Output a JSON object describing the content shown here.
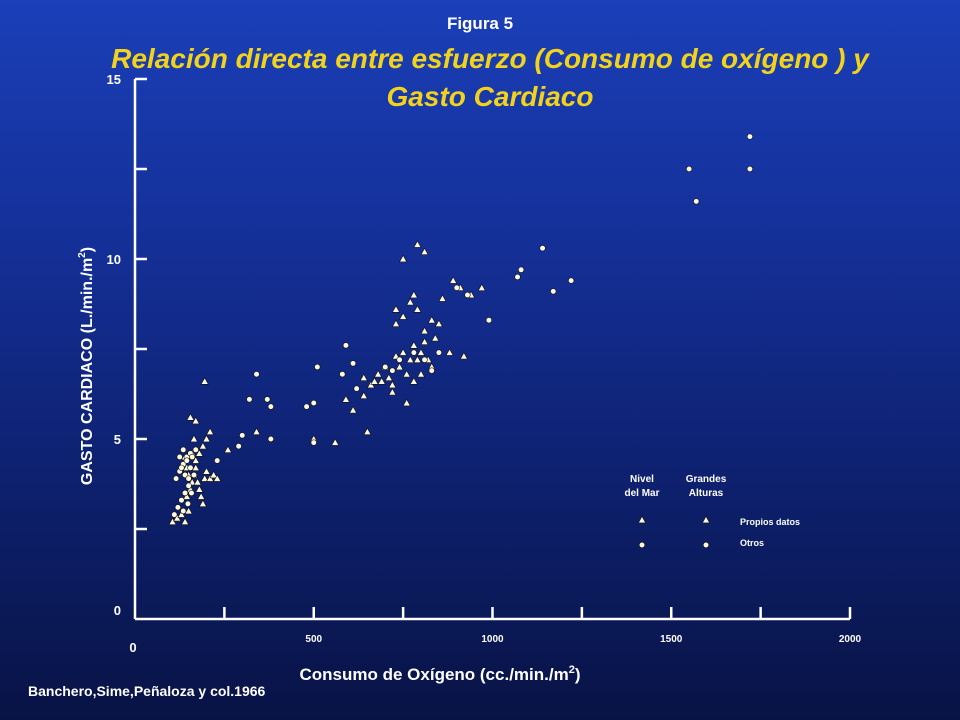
{
  "header": {
    "figure_label": "Figura 5",
    "title": "Relación directa entre esfuerzo (Consumo de oxígeno ) y Gasto Cardiaco"
  },
  "footer": {
    "credit": "Banchero,Sime,Peñaloza y col.1966"
  },
  "colors": {
    "title": "#f2d21a",
    "text": "#ffffff",
    "background_top": "#1a3fb8",
    "background_bottom": "#081345",
    "marker_fill": "#fdf8e0"
  },
  "chart_data": {
    "type": "scatter",
    "xlabel": "Consumo de Oxígeno (cc./min./m",
    "xlabel_sup": "2",
    "xlabel_end": ")",
    "ylabel": "GASTO CARDIACO (L./min./m",
    "ylabel_sup": "2",
    "ylabel_end": ")",
    "xlim": [
      0,
      2000
    ],
    "ylim": [
      0,
      15
    ],
    "x_origin_label": "0",
    "x_ticks": [
      0,
      250,
      500,
      750,
      1000,
      1250,
      1500,
      1750,
      2000
    ],
    "x_tick_labels": [
      {
        "x": 500,
        "label": "500"
      },
      {
        "x": 1000,
        "label": "1000"
      },
      {
        "x": 1500,
        "label": "1500"
      },
      {
        "x": 2000,
        "label": "2000"
      }
    ],
    "y_ticks": [
      0,
      2.5,
      5,
      7.5,
      10,
      12.5,
      15
    ],
    "y_tick_labels": [
      {
        "y": 0,
        "label": "0"
      },
      {
        "y": 5,
        "label": "5"
      },
      {
        "y": 10,
        "label": "10"
      },
      {
        "y": 15,
        "label": "15"
      }
    ],
    "grid": false,
    "legend": {
      "placement": "bottom-right",
      "columns": [
        "Nivel del Mar",
        "Grandes Alturas"
      ],
      "rows": [
        "Propios datos",
        "Otros"
      ]
    },
    "series": [
      {
        "name": "Nivel del Mar · Propios datos",
        "marker": "triangle",
        "points": [
          [
            105,
            2.7
          ],
          [
            118,
            2.8
          ],
          [
            130,
            2.9
          ],
          [
            140,
            2.7
          ],
          [
            150,
            3.0
          ],
          [
            145,
            3.4
          ],
          [
            155,
            3.6
          ],
          [
            160,
            3.8
          ],
          [
            165,
            4.0
          ],
          [
            170,
            4.2
          ],
          [
            175,
            3.8
          ],
          [
            180,
            3.6
          ],
          [
            185,
            3.4
          ],
          [
            190,
            3.2
          ],
          [
            195,
            3.9
          ],
          [
            200,
            4.1
          ],
          [
            210,
            3.9
          ],
          [
            220,
            4.0
          ],
          [
            230,
            3.9
          ],
          [
            170,
            4.4
          ],
          [
            180,
            4.6
          ],
          [
            190,
            4.8
          ],
          [
            200,
            5.0
          ],
          [
            210,
            5.2
          ],
          [
            160,
            4.6
          ],
          [
            165,
            5.0
          ],
          [
            170,
            5.5
          ],
          [
            155,
            5.6
          ],
          [
            195,
            6.6
          ],
          [
            140,
            4.5
          ],
          [
            145,
            4.2
          ],
          [
            150,
            4.0
          ]
        ]
      },
      {
        "name": "Nivel del Mar · Otros",
        "marker": "circle",
        "points": [
          [
            110,
            2.9
          ],
          [
            120,
            3.1
          ],
          [
            130,
            3.3
          ],
          [
            140,
            3.5
          ],
          [
            150,
            3.7
          ],
          [
            115,
            3.9
          ],
          [
            125,
            4.1
          ],
          [
            135,
            4.3
          ],
          [
            145,
            4.5
          ],
          [
            155,
            4.6
          ],
          [
            125,
            4.5
          ],
          [
            135,
            4.7
          ],
          [
            145,
            4.4
          ],
          [
            155,
            4.2
          ],
          [
            165,
            4.0
          ],
          [
            130,
            4.2
          ],
          [
            140,
            4.0
          ],
          [
            150,
            3.9
          ],
          [
            160,
            4.5
          ],
          [
            170,
            4.7
          ],
          [
            135,
            3.0
          ],
          [
            148,
            3.2
          ],
          [
            158,
            3.5
          ]
        ]
      },
      {
        "name": "Grandes Alturas · Propios datos",
        "marker": "triangle",
        "points": [
          [
            260,
            4.7
          ],
          [
            340,
            5.2
          ],
          [
            500,
            5.0
          ],
          [
            560,
            4.9
          ],
          [
            590,
            6.1
          ],
          [
            610,
            5.8
          ],
          [
            640,
            6.7
          ],
          [
            660,
            6.5
          ],
          [
            670,
            6.6
          ],
          [
            680,
            6.8
          ],
          [
            690,
            6.6
          ],
          [
            700,
            7.0
          ],
          [
            710,
            6.7
          ],
          [
            720,
            6.5
          ],
          [
            730,
            7.3
          ],
          [
            740,
            7.0
          ],
          [
            750,
            7.4
          ],
          [
            760,
            6.8
          ],
          [
            770,
            7.2
          ],
          [
            780,
            7.6
          ],
          [
            790,
            7.2
          ],
          [
            800,
            7.4
          ],
          [
            810,
            7.7
          ],
          [
            820,
            7.2
          ],
          [
            830,
            7.0
          ],
          [
            720,
            6.3
          ],
          [
            760,
            6.0
          ],
          [
            780,
            6.6
          ],
          [
            800,
            6.8
          ],
          [
            640,
            6.2
          ],
          [
            650,
            5.2
          ],
          [
            730,
            8.2
          ],
          [
            750,
            8.4
          ],
          [
            770,
            8.8
          ],
          [
            790,
            8.6
          ],
          [
            810,
            8.0
          ],
          [
            830,
            8.3
          ],
          [
            860,
            8.9
          ],
          [
            890,
            9.4
          ],
          [
            910,
            9.2
          ],
          [
            940,
            9.0
          ],
          [
            970,
            9.2
          ],
          [
            750,
            10.0
          ],
          [
            790,
            10.4
          ],
          [
            810,
            10.2
          ],
          [
            880,
            7.4
          ],
          [
            920,
            7.3
          ],
          [
            780,
            9.0
          ],
          [
            730,
            8.6
          ],
          [
            840,
            7.8
          ],
          [
            850,
            8.2
          ]
        ]
      },
      {
        "name": "Grandes Alturas · Otros",
        "marker": "circle",
        "points": [
          [
            230,
            4.4
          ],
          [
            290,
            4.8
          ],
          [
            300,
            5.1
          ],
          [
            320,
            6.1
          ],
          [
            340,
            6.8
          ],
          [
            370,
            6.1
          ],
          [
            380,
            5.9
          ],
          [
            380,
            5.0
          ],
          [
            480,
            5.9
          ],
          [
            500,
            6.0
          ],
          [
            510,
            7.0
          ],
          [
            500,
            4.9
          ],
          [
            590,
            7.6
          ],
          [
            580,
            6.8
          ],
          [
            610,
            7.1
          ],
          [
            620,
            6.4
          ],
          [
            700,
            7.0
          ],
          [
            720,
            6.9
          ],
          [
            740,
            7.2
          ],
          [
            780,
            7.4
          ],
          [
            810,
            7.2
          ],
          [
            830,
            6.9
          ],
          [
            850,
            7.4
          ],
          [
            900,
            9.2
          ],
          [
            930,
            9.0
          ],
          [
            990,
            8.3
          ],
          [
            1070,
            9.5
          ],
          [
            1080,
            9.7
          ],
          [
            1140,
            10.3
          ],
          [
            1170,
            9.1
          ],
          [
            1220,
            9.4
          ],
          [
            1550,
            12.5
          ],
          [
            1570,
            11.6
          ],
          [
            1720,
            12.5
          ],
          [
            1720,
            13.4
          ]
        ]
      }
    ]
  }
}
